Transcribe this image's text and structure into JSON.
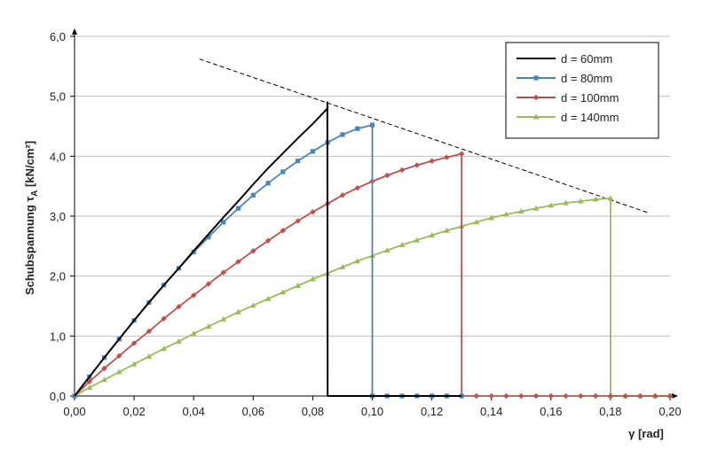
{
  "chart_data": {
    "type": "line",
    "xlabel": "γ [rad]",
    "ylabel": "Schubspannung τA [kN/cm²]",
    "ylabel_main": "Schubspannung τ",
    "ylabel_sub": "A",
    "ylabel_unit": " [kN/cm²]",
    "xlim": [
      0,
      0.2
    ],
    "ylim": [
      0,
      6
    ],
    "x_ticks": [
      "0,00",
      "0,02",
      "0,04",
      "0,06",
      "0,08",
      "0,10",
      "0,12",
      "0,14",
      "0,16",
      "0,18",
      "0,20"
    ],
    "y_ticks": [
      "0,0",
      "1,0",
      "2,0",
      "3,0",
      "4,0",
      "5,0",
      "6,0"
    ],
    "grid": "horizontal",
    "legend_position": "top-right",
    "series": [
      {
        "name": "d = 60mm",
        "color": "#000000",
        "marker": "none",
        "points": [
          [
            0,
            0
          ],
          [
            0.005,
            0.32
          ],
          [
            0.01,
            0.64
          ],
          [
            0.015,
            0.95
          ],
          [
            0.02,
            1.26
          ],
          [
            0.025,
            1.56
          ],
          [
            0.03,
            1.85
          ],
          [
            0.035,
            2.13
          ],
          [
            0.04,
            2.42
          ],
          [
            0.045,
            2.7
          ],
          [
            0.05,
            2.98
          ],
          [
            0.055,
            3.25
          ],
          [
            0.06,
            3.53
          ],
          [
            0.065,
            3.8
          ],
          [
            0.07,
            4.05
          ],
          [
            0.075,
            4.3
          ],
          [
            0.08,
            4.54
          ],
          [
            0.085,
            4.8
          ],
          [
            0.0849,
            4.9
          ],
          [
            0.085,
            0
          ],
          [
            0.1,
            0
          ],
          [
            0.13,
            0
          ]
        ]
      },
      {
        "name": "d = 80mm",
        "color": "#4a86b4",
        "marker": "square",
        "points": [
          [
            0,
            0
          ],
          [
            0.005,
            0.32
          ],
          [
            0.01,
            0.64
          ],
          [
            0.015,
            0.95
          ],
          [
            0.02,
            1.26
          ],
          [
            0.025,
            1.56
          ],
          [
            0.03,
            1.85
          ],
          [
            0.035,
            2.13
          ],
          [
            0.04,
            2.4
          ],
          [
            0.045,
            2.65
          ],
          [
            0.05,
            2.9
          ],
          [
            0.055,
            3.13
          ],
          [
            0.06,
            3.35
          ],
          [
            0.065,
            3.55
          ],
          [
            0.07,
            3.74
          ],
          [
            0.075,
            3.92
          ],
          [
            0.08,
            4.08
          ],
          [
            0.085,
            4.23
          ],
          [
            0.09,
            4.36
          ],
          [
            0.095,
            4.46
          ],
          [
            0.1,
            4.52
          ],
          [
            0.1,
            0
          ],
          [
            0.105,
            0
          ],
          [
            0.11,
            0
          ],
          [
            0.115,
            0
          ],
          [
            0.12,
            0
          ],
          [
            0.125,
            0
          ],
          [
            0.13,
            0
          ]
        ]
      },
      {
        "name": "d = 100mm",
        "color": "#c0504d",
        "marker": "diamond",
        "points": [
          [
            0,
            0
          ],
          [
            0.005,
            0.24
          ],
          [
            0.01,
            0.46
          ],
          [
            0.015,
            0.67
          ],
          [
            0.02,
            0.88
          ],
          [
            0.025,
            1.08
          ],
          [
            0.03,
            1.29
          ],
          [
            0.035,
            1.49
          ],
          [
            0.04,
            1.68
          ],
          [
            0.045,
            1.87
          ],
          [
            0.05,
            2.06
          ],
          [
            0.055,
            2.24
          ],
          [
            0.06,
            2.42
          ],
          [
            0.065,
            2.59
          ],
          [
            0.07,
            2.76
          ],
          [
            0.075,
            2.92
          ],
          [
            0.08,
            3.07
          ],
          [
            0.085,
            3.21
          ],
          [
            0.09,
            3.35
          ],
          [
            0.095,
            3.47
          ],
          [
            0.1,
            3.58
          ],
          [
            0.105,
            3.68
          ],
          [
            0.11,
            3.77
          ],
          [
            0.115,
            3.85
          ],
          [
            0.12,
            3.92
          ],
          [
            0.125,
            3.98
          ],
          [
            0.13,
            4.04
          ],
          [
            0.13,
            0
          ],
          [
            0.135,
            0
          ],
          [
            0.14,
            0
          ],
          [
            0.145,
            0
          ],
          [
            0.15,
            0
          ],
          [
            0.155,
            0
          ],
          [
            0.16,
            0
          ],
          [
            0.165,
            0
          ],
          [
            0.17,
            0
          ],
          [
            0.175,
            0
          ],
          [
            0.18,
            0
          ],
          [
            0.185,
            0
          ],
          [
            0.19,
            0
          ],
          [
            0.195,
            0
          ],
          [
            0.2,
            0
          ]
        ]
      },
      {
        "name": "d = 140mm",
        "color": "#9bbb59",
        "marker": "triangle",
        "points": [
          [
            0,
            0
          ],
          [
            0.005,
            0.14
          ],
          [
            0.01,
            0.27
          ],
          [
            0.015,
            0.4
          ],
          [
            0.02,
            0.53
          ],
          [
            0.025,
            0.66
          ],
          [
            0.03,
            0.79
          ],
          [
            0.035,
            0.91
          ],
          [
            0.04,
            1.04
          ],
          [
            0.045,
            1.16
          ],
          [
            0.05,
            1.28
          ],
          [
            0.055,
            1.4
          ],
          [
            0.06,
            1.51
          ],
          [
            0.065,
            1.62
          ],
          [
            0.07,
            1.73
          ],
          [
            0.075,
            1.84
          ],
          [
            0.08,
            1.95
          ],
          [
            0.085,
            2.05
          ],
          [
            0.09,
            2.15
          ],
          [
            0.095,
            2.25
          ],
          [
            0.1,
            2.34
          ],
          [
            0.105,
            2.43
          ],
          [
            0.11,
            2.52
          ],
          [
            0.115,
            2.6
          ],
          [
            0.12,
            2.68
          ],
          [
            0.125,
            2.76
          ],
          [
            0.13,
            2.83
          ],
          [
            0.135,
            2.9
          ],
          [
            0.14,
            2.97
          ],
          [
            0.145,
            3.03
          ],
          [
            0.15,
            3.08
          ],
          [
            0.155,
            3.13
          ],
          [
            0.16,
            3.18
          ],
          [
            0.165,
            3.22
          ],
          [
            0.17,
            3.25
          ],
          [
            0.175,
            3.28
          ],
          [
            0.18,
            3.3
          ],
          [
            0.18,
            0
          ],
          [
            0.185,
            0
          ],
          [
            0.19,
            0
          ],
          [
            0.195,
            0
          ],
          [
            0.2,
            0
          ]
        ]
      }
    ],
    "reference_line": {
      "style": "dashed",
      "color": "#000000",
      "points": [
        [
          0.042,
          5.62
        ],
        [
          0.193,
          3.05
        ]
      ]
    }
  }
}
